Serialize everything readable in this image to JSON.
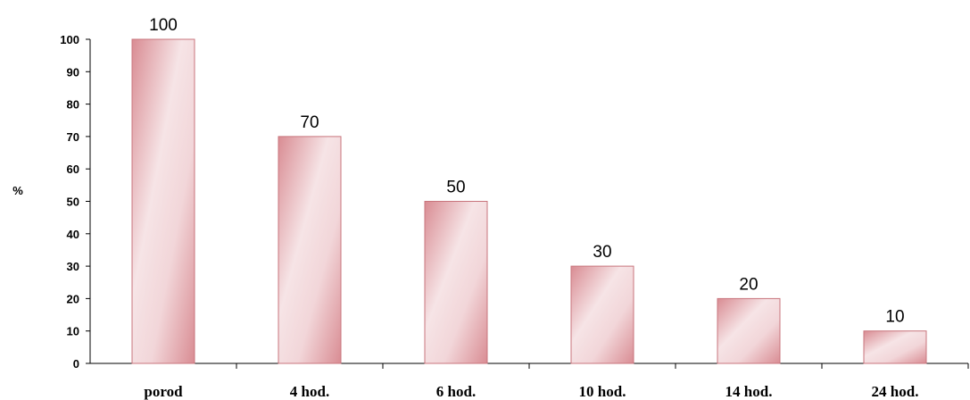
{
  "chart_data": {
    "type": "bar",
    "categories": [
      "porod",
      "4 hod.",
      "6 hod.",
      "10 hod.",
      "14 hod.",
      "24 hod."
    ],
    "values": [
      100,
      70,
      50,
      30,
      20,
      10
    ],
    "data_labels": [
      "100",
      "70",
      "50",
      "30",
      "20",
      "10"
    ],
    "title": "",
    "xlabel": "",
    "ylabel": "%",
    "ylim": [
      0,
      100
    ],
    "yticks": [
      "0",
      "10",
      "20",
      "30",
      "40",
      "50",
      "60",
      "70",
      "80",
      "90",
      "100"
    ],
    "grid": false,
    "legend": "none",
    "colors": {
      "bar_fill_light": "#f6e4e6",
      "bar_fill_dark": "#d98c93",
      "bar_edge": "#c8747c",
      "axis": "#000000"
    }
  }
}
